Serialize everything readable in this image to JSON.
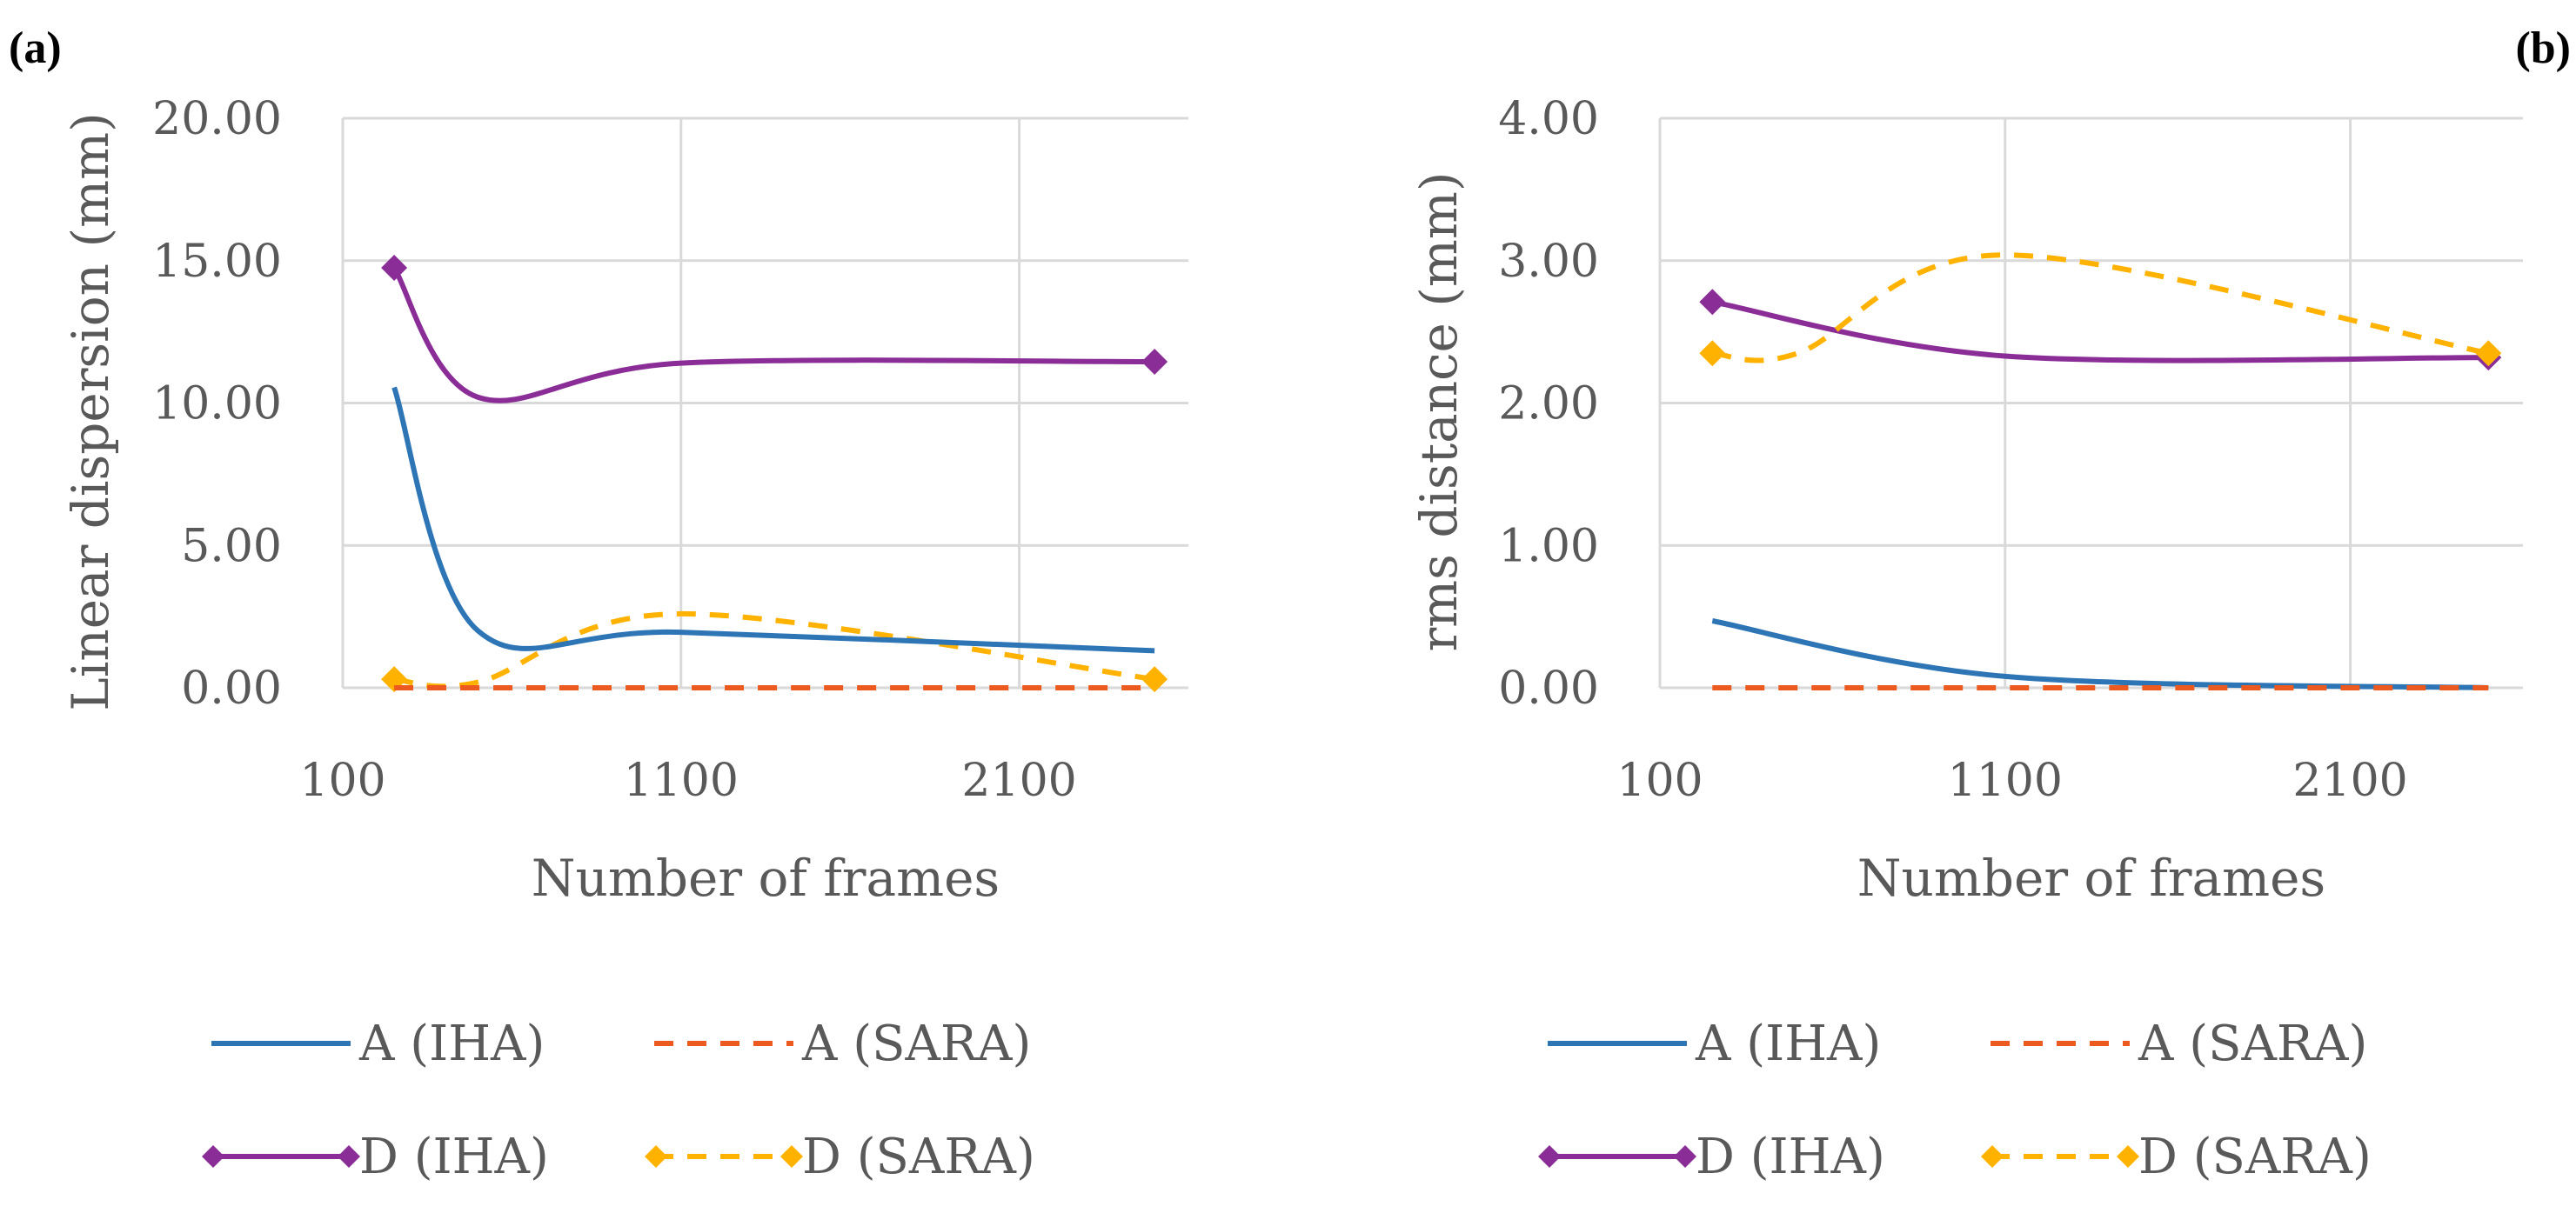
{
  "chart_data": [
    {
      "panel_label": "(a)",
      "type": "line",
      "xlabel": "Number of frames",
      "ylabel": "Linear dispersion  (mm)",
      "xlim": [
        100,
        2600
      ],
      "x_ticks": [
        100,
        1100,
        2100
      ],
      "ylim": [
        0,
        20
      ],
      "y_ticks": [
        "0.00",
        "5.00",
        "10.00",
        "15.00",
        "20.00"
      ],
      "grid": true,
      "series": [
        {
          "name": "A (IHA)",
          "color": "#2E75B6",
          "dashed": false,
          "markers": false,
          "x": [
            252,
            500,
            1100,
            2500
          ],
          "y": [
            10.55,
            2.0,
            1.95,
            1.3
          ]
        },
        {
          "name": "A (SARA)",
          "color": "#ED5A1F",
          "dashed": true,
          "markers": false,
          "x": [
            252,
            2500
          ],
          "y": [
            0.0,
            0.0
          ]
        },
        {
          "name": "D (IHA)",
          "color": "#8A2D97",
          "dashed": false,
          "markers": true,
          "x": [
            252,
            500,
            1100,
            2500
          ],
          "y": [
            14.75,
            10.2,
            11.4,
            11.45
          ]
        },
        {
          "name": "D (SARA)",
          "color": "#FFB200",
          "dashed": true,
          "markers": true,
          "x": [
            252,
            500,
            1100,
            2500
          ],
          "y": [
            0.3,
            0.2,
            2.6,
            0.3
          ]
        }
      ],
      "legend": [
        "A (IHA)",
        "A (SARA)",
        "D (IHA)",
        "D (SARA)"
      ]
    },
    {
      "panel_label": "(b)",
      "type": "line",
      "xlabel": "Number of frames",
      "ylabel": "rms distance (mm)",
      "xlim": [
        100,
        2600
      ],
      "x_ticks": [
        100,
        1100,
        2100
      ],
      "ylim": [
        0,
        4
      ],
      "y_ticks": [
        "0.00",
        "1.00",
        "2.00",
        "3.00",
        "4.00"
      ],
      "grid": true,
      "series": [
        {
          "name": "A (IHA)",
          "color": "#2E75B6",
          "dashed": false,
          "markers": false,
          "x": [
            252,
            1100,
            2500
          ],
          "y": [
            0.47,
            0.08,
            0.0
          ]
        },
        {
          "name": "A (SARA)",
          "color": "#ED5A1F",
          "dashed": true,
          "markers": false,
          "x": [
            252,
            2500
          ],
          "y": [
            0.0,
            0.0
          ]
        },
        {
          "name": "D (IHA)",
          "color": "#8A2D97",
          "dashed": false,
          "markers": true,
          "x": [
            252,
            1100,
            2500
          ],
          "y": [
            2.71,
            2.33,
            2.32
          ]
        },
        {
          "name": "D (SARA)",
          "color": "#FFB200",
          "dashed": true,
          "markers": true,
          "x": [
            252,
            500,
            1100,
            2500
          ],
          "y": [
            2.35,
            2.35,
            3.04,
            2.35
          ]
        }
      ],
      "legend": [
        "A (IHA)",
        "A (SARA)",
        "D (IHA)",
        "D (SARA)"
      ]
    }
  ]
}
